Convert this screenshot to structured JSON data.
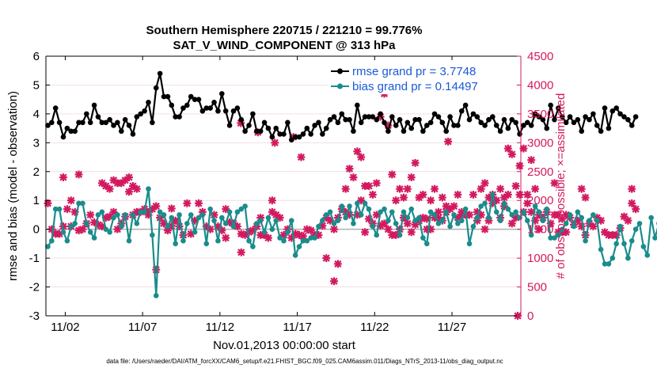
{
  "colors": {
    "rmse": "#000000",
    "bias": "#1a8c8c",
    "obs": "#d3195f",
    "zero_line": "#b0b0b0",
    "legend_text": "#1a5ad6"
  },
  "chart_data": {
    "type": "line",
    "title": "Southern Hemisphere 220715 / 221210 = 99.776%",
    "subtitle": "SAT_V_WIND_COMPONENT @ 313 hPa",
    "xlabel": "Nov.01,2013 00:00:00 start",
    "ylabel": "rmse and bias (model - observation)",
    "y2label": "# of obs: o=possible; ×=assimilated",
    "footnote": "data file: /Users/raeder/DAI/ATM_forcXX/CAM6_setup/f.e21.FHIST_BGC.f09_025.CAM6assim.011/Diags_NTrS_2013-11/obs_diag_output.nc",
    "xlim": [
      0.5,
      31.2
    ],
    "ylim": [
      -3,
      6
    ],
    "y2lim": [
      0,
      4500
    ],
    "x_ticks": [
      1.75,
      6.75,
      11.75,
      16.75,
      21.75,
      26.75
    ],
    "x_tick_labels": [
      "11/02",
      "11/07",
      "11/12",
      "11/17",
      "11/22",
      "11/27"
    ],
    "y_ticks": [
      -3,
      -2,
      -1,
      0,
      1,
      2,
      3,
      4,
      5,
      6
    ],
    "y_tick_labels": [
      "-3",
      "-2",
      "-1",
      "0",
      "1",
      "2",
      "3",
      "4",
      "5",
      "6"
    ],
    "y2_ticks": [
      0,
      500,
      1000,
      1500,
      2000,
      2500,
      3000,
      3500,
      4000,
      4500
    ],
    "y2_tick_labels": [
      "0",
      "500",
      "1000",
      "1500",
      "2000",
      "2500",
      "3000",
      "3500",
      "4000",
      "4500"
    ],
    "x_start": 0.625,
    "x_step": 0.25,
    "series": [
      {
        "name": "rmse",
        "legend": "rmse grand pr = 3.7748",
        "values": [
          3.6,
          3.7,
          4.2,
          3.7,
          3.2,
          3.5,
          3.4,
          3.4,
          3.7,
          3.7,
          4.0,
          3.7,
          4.3,
          3.9,
          3.7,
          3.7,
          3.8,
          3.6,
          3.7,
          3.4,
          3.8,
          3.6,
          3.3,
          3.9,
          4.0,
          4.1,
          4.4,
          3.7,
          4.9,
          5.4,
          4.6,
          4.6,
          4.3,
          3.9,
          3.9,
          4.2,
          4.3,
          4.6,
          4.5,
          4.5,
          4.1,
          4.2,
          4.2,
          4.4,
          4.1,
          4.7,
          4.1,
          3.6,
          4.1,
          4.2,
          3.8,
          3.4,
          3.6,
          4.0,
          3.4,
          3.4,
          3.7,
          3.5,
          3.2,
          3.5,
          3.3,
          3.3,
          3.7,
          3.1,
          3.2,
          3.2,
          3.3,
          3.5,
          3.3,
          3.6,
          3.7,
          3.3,
          3.5,
          3.8,
          3.9,
          3.7,
          4.0,
          3.8,
          3.8,
          3.4,
          4.3,
          3.7,
          3.9,
          3.9,
          3.9,
          3.8,
          4.0,
          3.7,
          3.4,
          3.9,
          3.6,
          3.8,
          3.4,
          3.7,
          3.5,
          3.8,
          3.8,
          3.4,
          3.6,
          3.7,
          4.0,
          3.9,
          3.7,
          3.4,
          3.9,
          3.6,
          3.6,
          4.1,
          4.3,
          3.8,
          4.0,
          3.9,
          3.7,
          3.6,
          3.8,
          3.9,
          3.6,
          3.4,
          3.8,
          3.5,
          3.8,
          3.7,
          3.3,
          3.6,
          3.7,
          3.6,
          4.0,
          3.9,
          3.8,
          3.5,
          4.3,
          3.8,
          4.2,
          3.9,
          3.7,
          3.9,
          3.7,
          3.8,
          3.4,
          3.9,
          3.8,
          4.0,
          3.6,
          3.4,
          4.2,
          3.5,
          4.1,
          4.2,
          4.0,
          3.9,
          3.8,
          3.6,
          3.9
        ]
      },
      {
        "name": "bias",
        "legend": "bias grand pr = 0.14497",
        "values": [
          -0.6,
          -0.4,
          0.7,
          0.7,
          -0.1,
          -0.4,
          0.1,
          0.2,
          0.9,
          0.9,
          0.2,
          -0.1,
          -0.3,
          0.5,
          0.6,
          0.0,
          -0.1,
          0.4,
          0.5,
          0.1,
          0.5,
          -0.4,
          0.5,
          0.2,
          0.6,
          0.6,
          1.4,
          -0.2,
          -2.3,
          0.6,
          0.5,
          0.1,
          0.4,
          -0.5,
          0.5,
          -0.4,
          0.2,
          0.5,
          -0.1,
          0.4,
          0.5,
          -0.5,
          0.7,
          0.3,
          -0.4,
          0.4,
          0.2,
          0.6,
          0.1,
          0.6,
          0.7,
          0.8,
          -0.4,
          -0.6,
          0.2,
          0.3,
          -0.1,
          0.4,
          0.0,
          0.3,
          -0.3,
          -0.4,
          -0.1,
          0.3,
          -0.9,
          -0.6,
          -0.4,
          -0.4,
          -0.3,
          -0.3,
          0.1,
          0.3,
          0.5,
          0.6,
          0.2,
          0.3,
          0.8,
          0.4,
          0.8,
          0.2,
          0.9,
          0.5,
          0.9,
          0.7,
          0.1,
          -0.2,
          0.6,
          0.7,
          0.3,
          0.6,
          0.2,
          -0.2,
          0.6,
          0.4,
          0.7,
          0.3,
          0.4,
          -0.3,
          -0.5,
          0.6,
          0.5,
          0.2,
          0.3,
          0.6,
          0.1,
          0.5,
          0.2,
          0.3,
          0.7,
          -0.5,
          0.1,
          0.4,
          0.8,
          0.9,
          0.4,
          1.2,
          0.6,
          0.3,
          0.9,
          0.7,
          0.5,
          0.6,
          0.4,
          0.6,
          0.3,
          -0.2,
          0.8,
          0.6,
          0.3,
          0.7,
          -0.3,
          -0.3,
          -0.2,
          0.0,
          0.2,
          0.5,
          0.1,
          0.6,
          0.4,
          -0.4,
          0.3,
          0.5,
          0.3,
          -0.7,
          -1.2,
          -1.2,
          -1.0,
          -0.5,
          0.1,
          -0.5,
          -1.0,
          -0.4,
          0.0,
          0.2,
          -0.6,
          -0.9,
          0.4,
          -0.3,
          0.2
        ]
      },
      {
        "name": "obs_possible",
        "values": [
          1950,
          1500,
          1420,
          1420,
          1550,
          1850,
          2000,
          1800,
          1480,
          1500,
          1600,
          1750,
          1620,
          1580,
          1550,
          1700,
          1720,
          1800,
          1500,
          1600,
          1720,
          2400,
          1750,
          1800,
          1800,
          1850,
          1750,
          1850,
          1900,
          1700,
          1600,
          1480,
          1560,
          1650,
          1550,
          1400,
          1950,
          1420,
          1650,
          1950,
          1800,
          1550,
          1500,
          1750,
          1550,
          1480,
          1850,
          1620,
          1600,
          1550,
          1420,
          1400,
          1450,
          1480,
          1550,
          1700,
          1400,
          1350,
          1800,
          1750,
          1700,
          1400,
          1500,
          1350,
          1420,
          1400,
          1380,
          1500,
          1480,
          1400,
          1400,
          1560,
          1700,
          1650,
          1500,
          1700,
          1850,
          1800,
          1750,
          2400,
          1750,
          2000,
          1450,
          1680,
          1600,
          1750,
          1560,
          1600,
          1500,
          1400,
          1400,
          1500,
          1700,
          1600,
          1450,
          1580,
          1650,
          1700,
          1680,
          1500,
          1700,
          1800,
          1650,
          1900,
          1850,
          1900,
          1700,
          1800,
          1750,
          1750,
          2100,
          1800,
          1750,
          1500,
          1650,
          1950,
          2000,
          1700,
          1900,
          2100,
          1600,
          1700,
          2100,
          1800,
          1950,
          1800,
          1650,
          1500,
          1700,
          1800,
          1600,
          1750,
          1750,
          1680,
          1450,
          1700,
          1580,
          1650,
          1550,
          1400,
          1600,
          1550,
          1700,
          1650,
          1450,
          1400,
          1400,
          1400,
          1520,
          1720,
          1650,
          1950,
          1850
        ]
      },
      {
        "name": "obs_assimilated",
        "values": [
          1950,
          1500,
          1420,
          1420,
          2400,
          1850,
          1550,
          1800,
          2450,
          1500,
          1600,
          1750,
          1620,
          1580,
          2300,
          2250,
          2200,
          2350,
          2300,
          2300,
          2350,
          2150,
          2250,
          2200,
          1800,
          1850,
          1800,
          1850,
          800,
          1700,
          1600,
          1480,
          1860,
          1650,
          1550,
          1400,
          1950,
          1420,
          1650,
          1950,
          1800,
          1550,
          1500,
          1750,
          1550,
          1480,
          1350,
          1620,
          1600,
          1550,
          1100,
          1400,
          1450,
          1480,
          1550,
          1400,
          1400,
          1350,
          2000,
          1750,
          1700,
          1400,
          1500,
          1350,
          1420,
          1400,
          1380,
          1500,
          1480,
          1400,
          1400,
          1560,
          1000,
          1650,
          600,
          900,
          1850,
          2200,
          2550,
          2400,
          2850,
          2750,
          2250,
          2250,
          2100,
          2300,
          3450,
          3850,
          3300,
          2450,
          2000,
          2200,
          2050,
          2200,
          2400,
          2650,
          2050,
          2100,
          1500,
          2000,
          2200,
          1700,
          2050,
          1800,
          1850,
          1900,
          2100,
          1750,
          1750,
          1750,
          2100,
          1650,
          2200,
          2300,
          2050,
          2100,
          2000,
          2200,
          2050,
          2900,
          2800,
          2250,
          2600,
          2900,
          2100,
          2700,
          2200,
          1750,
          1700,
          1800,
          1600,
          2300,
          1450,
          1450,
          1750,
          1700,
          1580,
          1650,
          2200,
          2050,
          1600,
          1550,
          1700,
          1650,
          1450,
          1400,
          1400,
          1400,
          1520,
          1720,
          1650,
          2200,
          1850
        ]
      },
      {
        "name": "obs_outliers",
        "values": [
          {
            "x": 13.1,
            "y": 3340
          },
          {
            "x": 14.2,
            "y": 3180
          },
          {
            "x": 15.3,
            "y": 3000
          },
          {
            "x": 16.5,
            "y": 3100
          },
          {
            "x": 17.0,
            "y": 2750
          },
          {
            "x": 26.5,
            "y": 3020
          },
          {
            "x": 31.0,
            "y": 0
          }
        ]
      }
    ]
  }
}
